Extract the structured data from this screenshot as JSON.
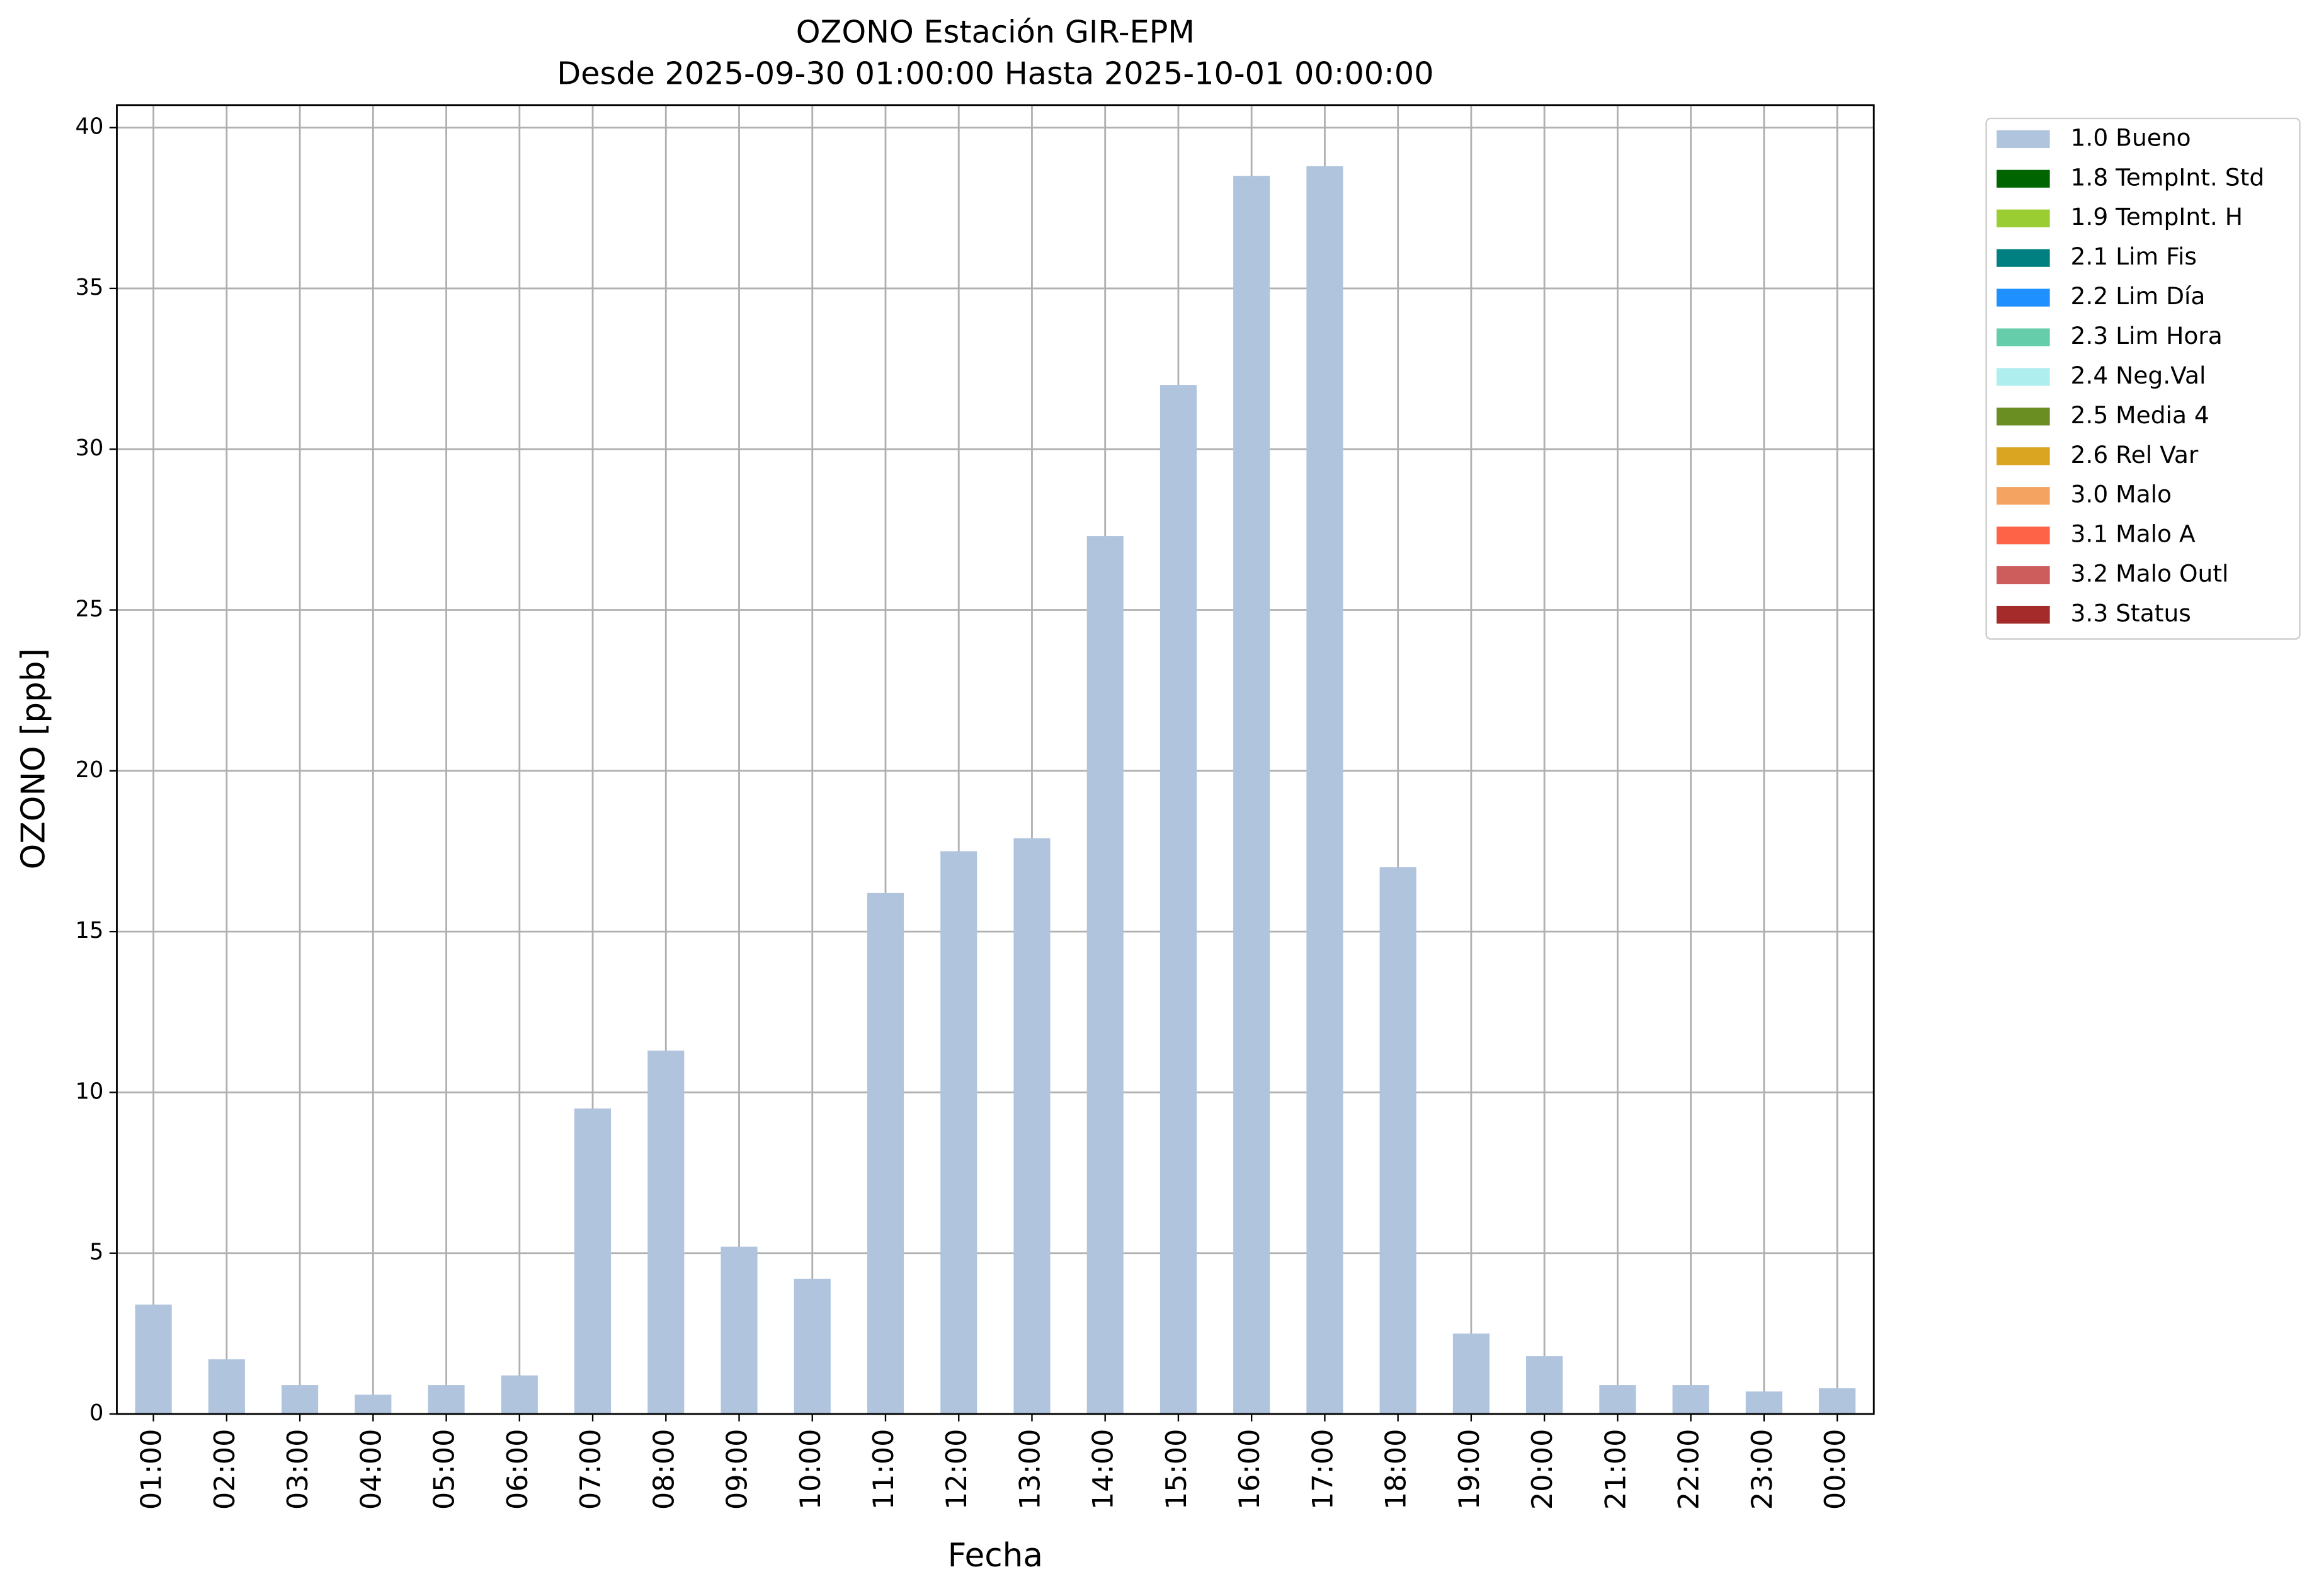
{
  "chart_data": {
    "type": "bar",
    "title": "OZONO Estación GIR-EPM",
    "subtitle": "Desde 2025-09-30 01:00:00 Hasta 2025-10-01 00:00:00",
    "x_label": "Fecha",
    "y_label": "OZONO [ppb]",
    "categories": [
      "01:00",
      "02:00",
      "03:00",
      "04:00",
      "05:00",
      "06:00",
      "07:00",
      "08:00",
      "09:00",
      "10:00",
      "11:00",
      "12:00",
      "13:00",
      "14:00",
      "15:00",
      "16:00",
      "17:00",
      "18:00",
      "19:00",
      "20:00",
      "21:00",
      "22:00",
      "23:00",
      "00:00"
    ],
    "series": [
      {
        "name": "1.0 Bueno",
        "color": "#b0c4de",
        "values": [
          3.4,
          1.7,
          0.9,
          0.6,
          0.9,
          1.2,
          9.5,
          11.3,
          5.2,
          4.2,
          16.2,
          17.5,
          17.9,
          27.3,
          32.0,
          38.5,
          38.8,
          17.0,
          2.5,
          1.8,
          0.9,
          0.9,
          0.7,
          0.8
        ]
      },
      {
        "name": "1.8 TempInt. Std",
        "color": "#006400",
        "values": [
          null,
          null,
          null,
          null,
          null,
          null,
          null,
          null,
          null,
          null,
          null,
          null,
          null,
          null,
          null,
          null,
          null,
          null,
          null,
          null,
          null,
          null,
          null,
          null
        ]
      },
      {
        "name": "1.9 TempInt. H",
        "color": "#9acd32",
        "values": [
          null,
          null,
          null,
          null,
          null,
          null,
          null,
          null,
          null,
          null,
          null,
          null,
          null,
          null,
          null,
          null,
          null,
          null,
          null,
          null,
          null,
          null,
          null,
          null
        ]
      },
      {
        "name": "2.1 Lim Fis",
        "color": "#008080",
        "values": [
          null,
          null,
          null,
          null,
          null,
          null,
          null,
          null,
          null,
          null,
          null,
          null,
          null,
          null,
          null,
          null,
          null,
          null,
          null,
          null,
          null,
          null,
          null,
          null
        ]
      },
      {
        "name": "2.2 Lim Día",
        "color": "#1e90ff",
        "values": [
          null,
          null,
          null,
          null,
          null,
          null,
          null,
          null,
          null,
          null,
          null,
          null,
          null,
          null,
          null,
          null,
          null,
          null,
          null,
          null,
          null,
          null,
          null,
          null
        ]
      },
      {
        "name": "2.3 Lim Hora",
        "color": "#66cdaa",
        "values": [
          null,
          null,
          null,
          null,
          null,
          null,
          null,
          null,
          null,
          null,
          null,
          null,
          null,
          null,
          null,
          null,
          null,
          null,
          null,
          null,
          null,
          null,
          null,
          null
        ]
      },
      {
        "name": "2.4 Neg.Val",
        "color": "#afeeee",
        "values": [
          null,
          null,
          null,
          null,
          null,
          null,
          null,
          null,
          null,
          null,
          null,
          null,
          null,
          null,
          null,
          null,
          null,
          null,
          null,
          null,
          null,
          null,
          null,
          null
        ]
      },
      {
        "name": "2.5 Media 4",
        "color": "#6b8e23",
        "values": [
          null,
          null,
          null,
          null,
          null,
          null,
          null,
          null,
          null,
          null,
          null,
          null,
          null,
          null,
          null,
          null,
          null,
          null,
          null,
          null,
          null,
          null,
          null,
          null
        ]
      },
      {
        "name": "2.6 Rel Var",
        "color": "#daa520",
        "values": [
          null,
          null,
          null,
          null,
          null,
          null,
          null,
          null,
          null,
          null,
          null,
          null,
          null,
          null,
          null,
          null,
          null,
          null,
          null,
          null,
          null,
          null,
          null,
          null
        ]
      },
      {
        "name": "3.0 Malo",
        "color": "#f4a460",
        "values": [
          null,
          null,
          null,
          null,
          null,
          null,
          null,
          null,
          null,
          null,
          null,
          null,
          null,
          null,
          null,
          null,
          null,
          null,
          null,
          null,
          null,
          null,
          null,
          null
        ]
      },
      {
        "name": "3.1 Malo A",
        "color": "#ff6347",
        "values": [
          null,
          null,
          null,
          null,
          null,
          null,
          null,
          null,
          null,
          null,
          null,
          null,
          null,
          null,
          null,
          null,
          null,
          null,
          null,
          null,
          null,
          null,
          null,
          null
        ]
      },
      {
        "name": "3.2 Malo Outl",
        "color": "#cd5c5c",
        "values": [
          null,
          null,
          null,
          null,
          null,
          null,
          null,
          null,
          null,
          null,
          null,
          null,
          null,
          null,
          null,
          null,
          null,
          null,
          null,
          null,
          null,
          null,
          null,
          null
        ]
      },
      {
        "name": "3.3 Status",
        "color": "#a52a2a",
        "values": [
          null,
          null,
          null,
          null,
          null,
          null,
          null,
          null,
          null,
          null,
          null,
          null,
          null,
          null,
          null,
          null,
          null,
          null,
          null,
          null,
          null,
          null,
          null,
          null
        ]
      }
    ],
    "ylim": [
      0,
      40.7
    ],
    "yticks": [
      0,
      5,
      10,
      15,
      20,
      25,
      30,
      35,
      40
    ],
    "grid": true,
    "stacked": true,
    "legend": "outside right"
  }
}
